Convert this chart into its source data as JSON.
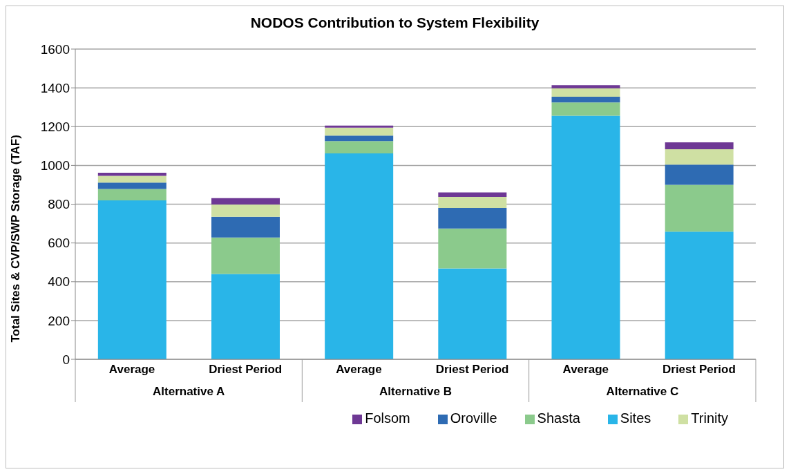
{
  "chart_data": {
    "type": "bar",
    "title": "NODOS Contribution to System Flexibility",
    "ylabel": "Total Sites & CVP/SWP Storage (TAF)",
    "categories": [
      "Average",
      "Driest Period",
      "Average",
      "Driest Period",
      "Average",
      "Driest Period"
    ],
    "annotations": [
      "Alternative A",
      "Alternative B",
      "Alternative C"
    ],
    "stacked": true,
    "series": [
      {
        "name": "Sites",
        "color": "#29b5e8",
        "values": [
          820,
          440,
          1062,
          469,
          1256,
          658
        ]
      },
      {
        "name": "Shasta",
        "color": "#8bca8c",
        "values": [
          58,
          188,
          63,
          205,
          69,
          242
        ]
      },
      {
        "name": "Oroville",
        "color": "#2e6bb3",
        "values": [
          33,
          107,
          29,
          106,
          29,
          104
        ]
      },
      {
        "name": "Trinity",
        "color": "#cfe0a3",
        "values": [
          35,
          63,
          41,
          57,
          44,
          79
        ]
      },
      {
        "name": "Folsom",
        "color": "#6e3894",
        "values": [
          16,
          33,
          10,
          24,
          16,
          36
        ]
      }
    ],
    "ylim": [
      0,
      1600
    ],
    "yticks": [
      0,
      200,
      400,
      600,
      800,
      1000,
      1200,
      1400,
      1600
    ],
    "grid": "y",
    "legend": "bottom right"
  }
}
